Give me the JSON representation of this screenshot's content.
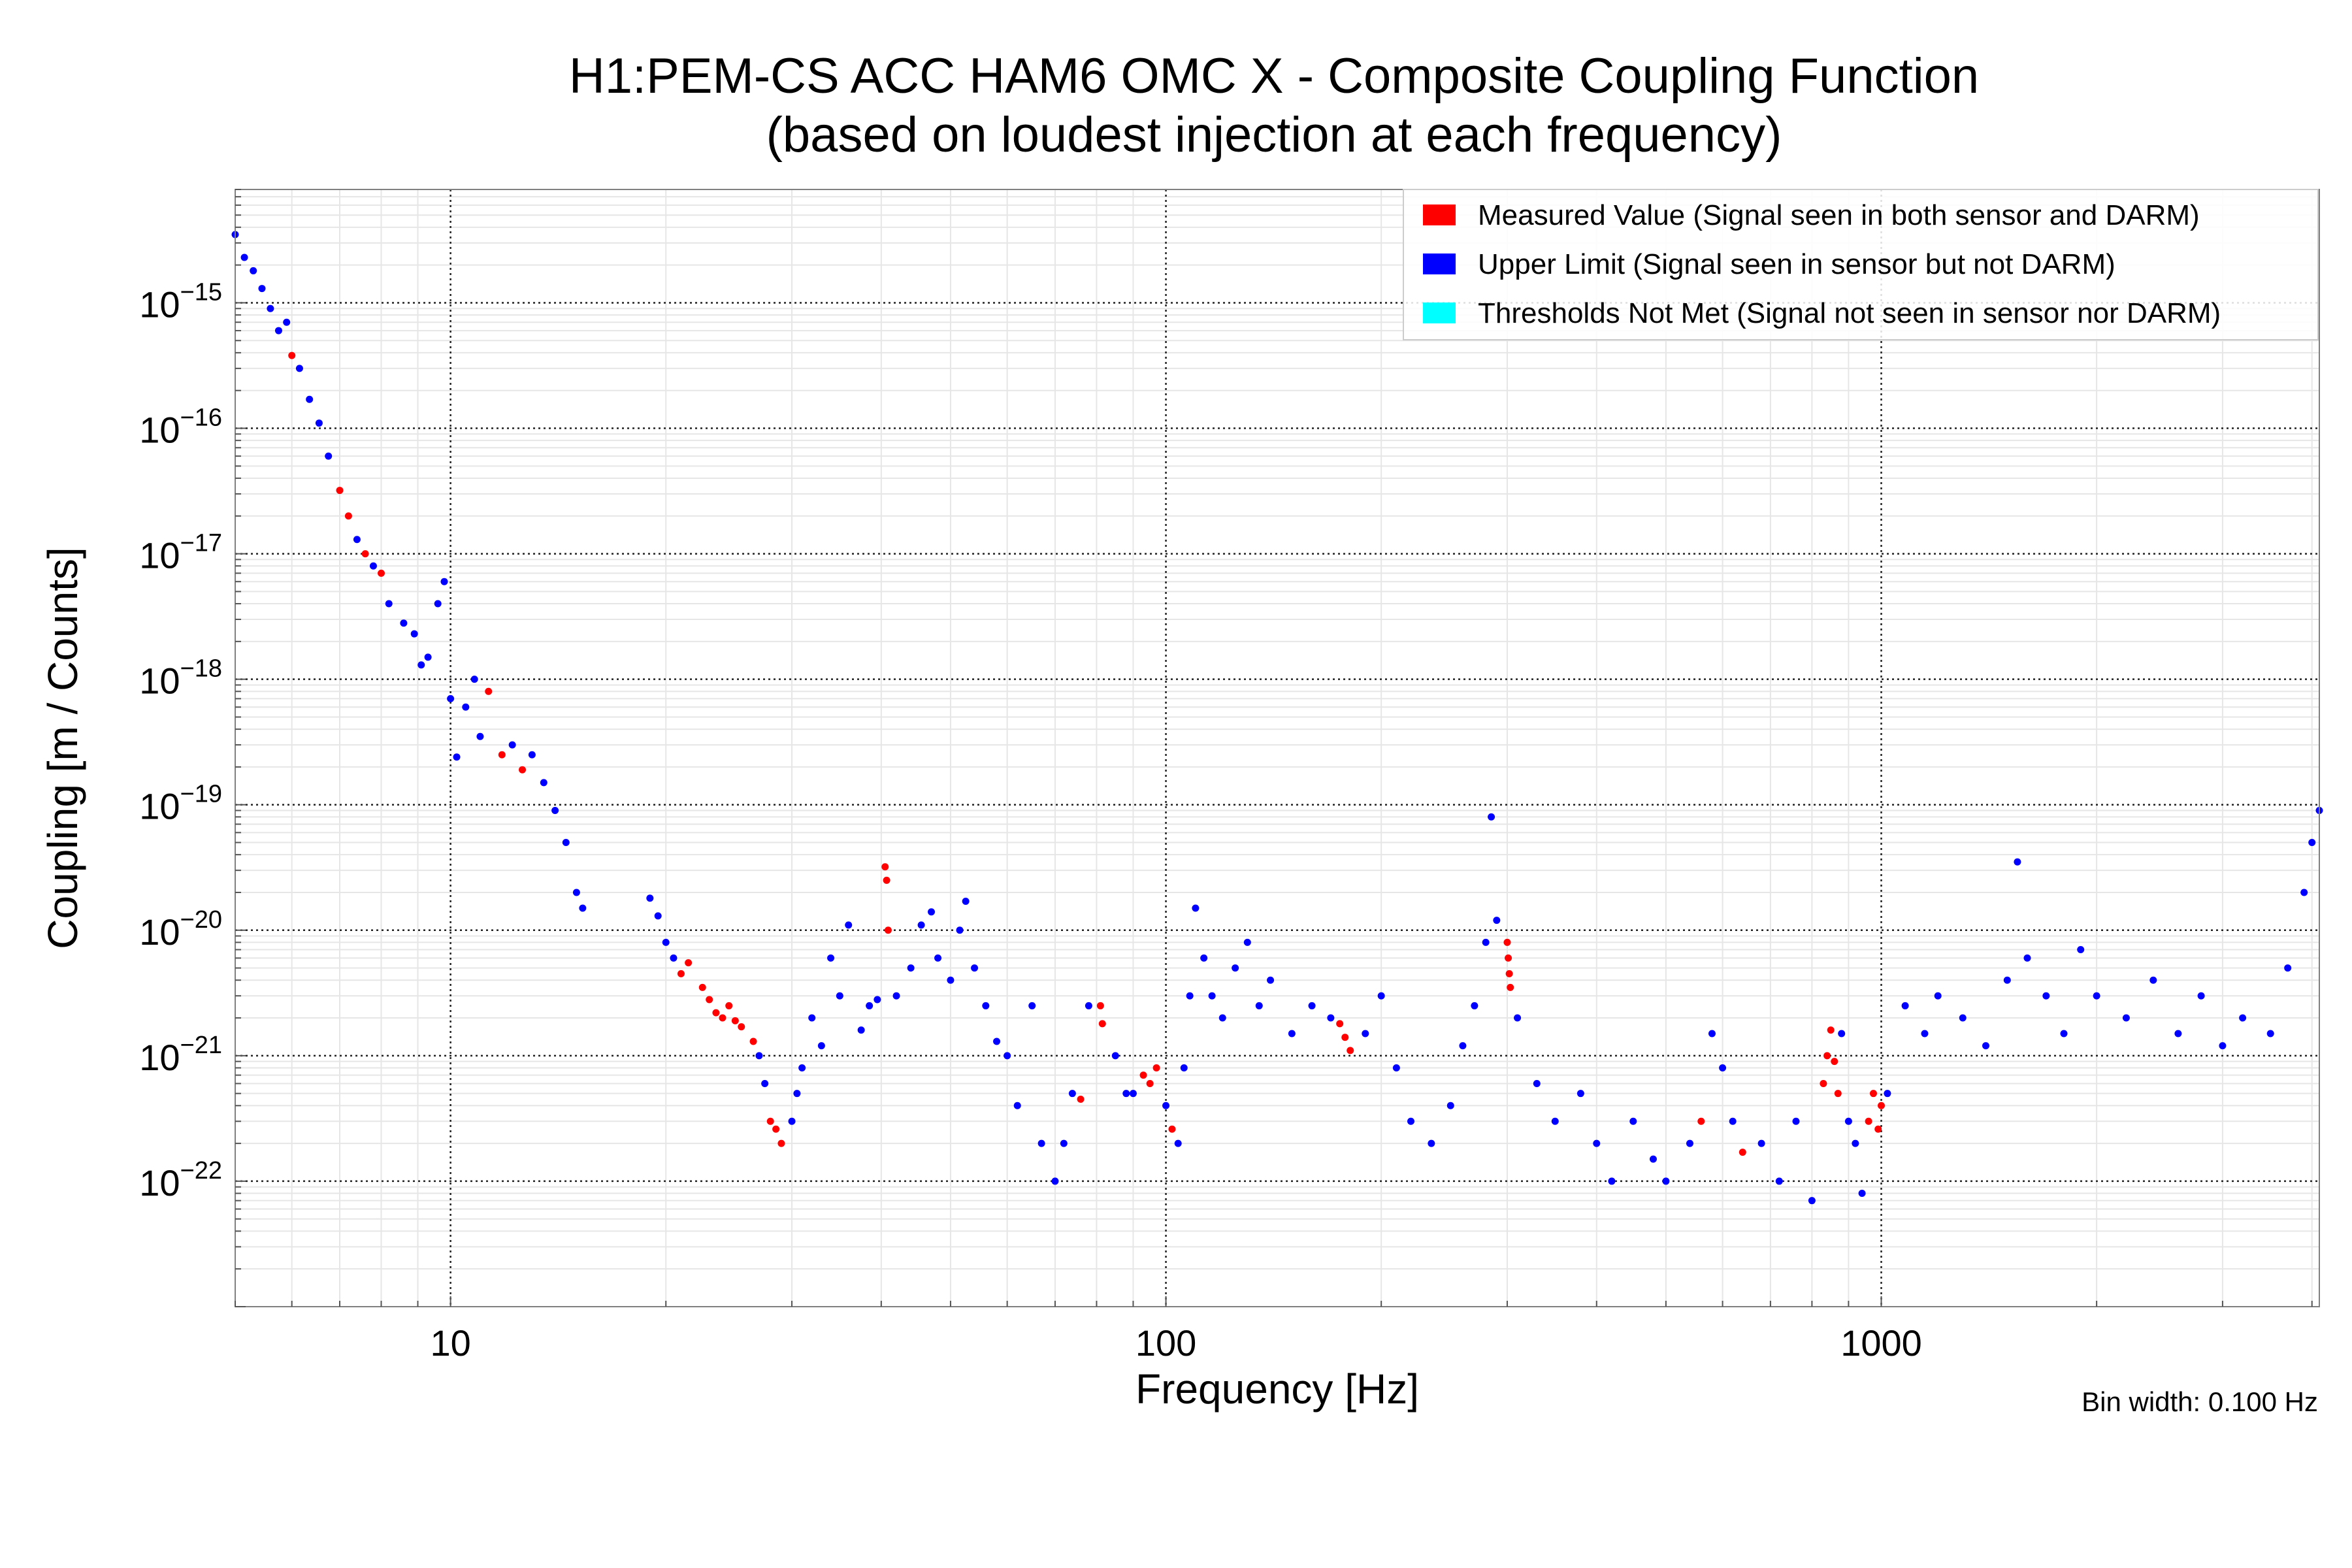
{
  "chart_data": {
    "type": "scatter",
    "title": "H1:PEM-CS ACC HAM6 OMC X - Composite Coupling Function",
    "subtitle": "(based on loudest injection at each frequency)",
    "xlabel": "Frequency [Hz]",
    "ylabel": "Coupling [m / Counts]",
    "xscale": "log",
    "yscale": "log",
    "xlim": [
      5,
      4096
    ],
    "ylim": [
      1e-23,
      8e-15
    ],
    "grid": true,
    "legend_position": "top-right",
    "x_ticks": [
      {
        "value": 10,
        "label": "10"
      },
      {
        "value": 100,
        "label": "100"
      },
      {
        "value": 1000,
        "label": "1000"
      }
    ],
    "y_ticks": [
      {
        "value": 1e-15,
        "base": "10",
        "exp": "−15"
      },
      {
        "value": 1e-16,
        "base": "10",
        "exp": "−16"
      },
      {
        "value": 1e-17,
        "base": "10",
        "exp": "−17"
      },
      {
        "value": 1e-18,
        "base": "10",
        "exp": "−18"
      },
      {
        "value": 1e-19,
        "base": "10",
        "exp": "−19"
      },
      {
        "value": 1e-20,
        "base": "10",
        "exp": "−20"
      },
      {
        "value": 1e-21,
        "base": "10",
        "exp": "−21"
      },
      {
        "value": 1e-22,
        "base": "10",
        "exp": "−22"
      }
    ],
    "annotation": "Bin width: 0.100 Hz",
    "series": [
      {
        "name": "Measured Value (Signal seen in both sensor and DARM)",
        "color": "#ff0000",
        "points": [
          [
            6.0,
            3.8e-16
          ],
          [
            7.0,
            3.2e-17
          ],
          [
            7.2,
            2e-17
          ],
          [
            7.6,
            1e-17
          ],
          [
            8.0,
            7e-18
          ],
          [
            11.3,
            8e-19
          ],
          [
            11.8,
            2.5e-19
          ],
          [
            12.6,
            1.9e-19
          ],
          [
            21.0,
            4.5e-21
          ],
          [
            21.5,
            5.5e-21
          ],
          [
            22.5,
            3.5e-21
          ],
          [
            23.0,
            2.8e-21
          ],
          [
            23.5,
            2.2e-21
          ],
          [
            24.0,
            2e-21
          ],
          [
            24.5,
            2.5e-21
          ],
          [
            25.0,
            1.9e-21
          ],
          [
            25.5,
            1.7e-21
          ],
          [
            26.5,
            1.3e-21
          ],
          [
            28.0,
            3e-22
          ],
          [
            28.5,
            2.6e-22
          ],
          [
            29.0,
            2e-22
          ],
          [
            40.5,
            3.2e-20
          ],
          [
            40.7,
            2.5e-20
          ],
          [
            40.9,
            1e-20
          ],
          [
            76.0,
            4.5e-22
          ],
          [
            81.0,
            2.5e-21
          ],
          [
            81.5,
            1.8e-21
          ],
          [
            93.0,
            7e-22
          ],
          [
            95.0,
            6e-22
          ],
          [
            97.0,
            8e-22
          ],
          [
            102.0,
            2.6e-22
          ],
          [
            175.0,
            1.8e-21
          ],
          [
            178.0,
            1.4e-21
          ],
          [
            181.0,
            1.1e-21
          ],
          [
            300.0,
            8e-21
          ],
          [
            301.0,
            6e-21
          ],
          [
            302.0,
            4.5e-21
          ],
          [
            303.0,
            3.5e-21
          ],
          [
            560.0,
            3e-22
          ],
          [
            640.0,
            1.7e-22
          ],
          [
            830.0,
            6e-22
          ],
          [
            840.0,
            1e-21
          ],
          [
            850.0,
            1.6e-21
          ],
          [
            860.0,
            9e-22
          ],
          [
            870.0,
            5e-22
          ],
          [
            960.0,
            3e-22
          ],
          [
            975.0,
            5e-22
          ],
          [
            990.0,
            2.6e-22
          ],
          [
            1000.0,
            4e-22
          ]
        ]
      },
      {
        "name": "Upper Limit (Signal seen in sensor but not DARM)",
        "color": "#0000ff",
        "points": [
          [
            5.0,
            3.5e-15
          ],
          [
            5.15,
            2.3e-15
          ],
          [
            5.3,
            1.8e-15
          ],
          [
            5.45,
            1.3e-15
          ],
          [
            5.6,
            9e-16
          ],
          [
            5.75,
            6e-16
          ],
          [
            5.9,
            7e-16
          ],
          [
            6.15,
            3e-16
          ],
          [
            6.35,
            1.7e-16
          ],
          [
            6.55,
            1.1e-16
          ],
          [
            6.75,
            6e-17
          ],
          [
            7.4,
            1.3e-17
          ],
          [
            7.8,
            8e-18
          ],
          [
            8.2,
            4e-18
          ],
          [
            8.6,
            2.8e-18
          ],
          [
            8.9,
            2.3e-18
          ],
          [
            9.1,
            1.3e-18
          ],
          [
            9.3,
            1.5e-18
          ],
          [
            9.6,
            4e-18
          ],
          [
            9.8,
            6e-18
          ],
          [
            10.0,
            7e-19
          ],
          [
            10.2,
            2.4e-19
          ],
          [
            10.5,
            6e-19
          ],
          [
            10.8,
            1e-18
          ],
          [
            11.0,
            3.5e-19
          ],
          [
            12.2,
            3e-19
          ],
          [
            13.0,
            2.5e-19
          ],
          [
            13.5,
            1.5e-19
          ],
          [
            14.0,
            9e-20
          ],
          [
            14.5,
            5e-20
          ],
          [
            15.0,
            2e-20
          ],
          [
            15.3,
            1.5e-20
          ],
          [
            19.0,
            1.8e-20
          ],
          [
            19.5,
            1.3e-20
          ],
          [
            20.0,
            8e-21
          ],
          [
            20.5,
            6e-21
          ],
          [
            27.0,
            1e-21
          ],
          [
            27.5,
            6e-22
          ],
          [
            30.0,
            3e-22
          ],
          [
            30.5,
            5e-22
          ],
          [
            31.0,
            8e-22
          ],
          [
            32.0,
            2e-21
          ],
          [
            33.0,
            1.2e-21
          ],
          [
            34.0,
            6e-21
          ],
          [
            35.0,
            3e-21
          ],
          [
            36.0,
            1.1e-20
          ],
          [
            37.5,
            1.6e-21
          ],
          [
            38.5,
            2.5e-21
          ],
          [
            39.5,
            2.8e-21
          ],
          [
            42.0,
            3e-21
          ],
          [
            44.0,
            5e-21
          ],
          [
            45.5,
            1.1e-20
          ],
          [
            47.0,
            1.4e-20
          ],
          [
            48.0,
            6e-21
          ],
          [
            50.0,
            4e-21
          ],
          [
            51.5,
            1e-20
          ],
          [
            52.5,
            1.7e-20
          ],
          [
            54.0,
            5e-21
          ],
          [
            56.0,
            2.5e-21
          ],
          [
            58.0,
            1.3e-21
          ],
          [
            60.0,
            1e-21
          ],
          [
            62.0,
            4e-22
          ],
          [
            65.0,
            2.5e-21
          ],
          [
            67.0,
            2e-22
          ],
          [
            70.0,
            1e-22
          ],
          [
            72.0,
            2e-22
          ],
          [
            74.0,
            5e-22
          ],
          [
            78.0,
            2.5e-21
          ],
          [
            85.0,
            1e-21
          ],
          [
            88.0,
            5e-22
          ],
          [
            90.0,
            5e-22
          ],
          [
            100.0,
            4e-22
          ],
          [
            104.0,
            2e-22
          ],
          [
            106.0,
            8e-22
          ],
          [
            108.0,
            3e-21
          ],
          [
            110.0,
            1.5e-20
          ],
          [
            113.0,
            6e-21
          ],
          [
            116.0,
            3e-21
          ],
          [
            120.0,
            2e-21
          ],
          [
            125.0,
            5e-21
          ],
          [
            130.0,
            8e-21
          ],
          [
            135.0,
            2.5e-21
          ],
          [
            140.0,
            4e-21
          ],
          [
            150.0,
            1.5e-21
          ],
          [
            160.0,
            2.5e-21
          ],
          [
            170.0,
            2e-21
          ],
          [
            190.0,
            1.5e-21
          ],
          [
            200.0,
            3e-21
          ],
          [
            210.0,
            8e-22
          ],
          [
            220.0,
            3e-22
          ],
          [
            235.0,
            2e-22
          ],
          [
            250.0,
            4e-22
          ],
          [
            260.0,
            1.2e-21
          ],
          [
            270.0,
            2.5e-21
          ],
          [
            280.0,
            8e-21
          ],
          [
            285.0,
            8e-20
          ],
          [
            290.0,
            1.2e-20
          ],
          [
            310.0,
            2e-21
          ],
          [
            330.0,
            6e-22
          ],
          [
            350.0,
            3e-22
          ],
          [
            380.0,
            5e-22
          ],
          [
            400.0,
            2e-22
          ],
          [
            420.0,
            1e-22
          ],
          [
            450.0,
            3e-22
          ],
          [
            480.0,
            1.5e-22
          ],
          [
            500.0,
            1e-22
          ],
          [
            540.0,
            2e-22
          ],
          [
            580.0,
            1.5e-21
          ],
          [
            600.0,
            8e-22
          ],
          [
            620.0,
            3e-22
          ],
          [
            680.0,
            2e-22
          ],
          [
            720.0,
            1e-22
          ],
          [
            760.0,
            3e-22
          ],
          [
            800.0,
            7e-23
          ],
          [
            880.0,
            1.5e-21
          ],
          [
            900.0,
            3e-22
          ],
          [
            920.0,
            2e-22
          ],
          [
            940.0,
            8e-23
          ],
          [
            1020.0,
            5e-22
          ],
          [
            1080.0,
            2.5e-21
          ],
          [
            1150.0,
            1.5e-21
          ],
          [
            1200.0,
            3e-21
          ],
          [
            1300.0,
            2e-21
          ],
          [
            1400.0,
            1.2e-21
          ],
          [
            1500.0,
            4e-21
          ],
          [
            1550.0,
            3.5e-20
          ],
          [
            1600.0,
            6e-21
          ],
          [
            1700.0,
            3e-21
          ],
          [
            1800.0,
            1.5e-21
          ],
          [
            1900.0,
            7e-21
          ],
          [
            2000.0,
            3e-21
          ],
          [
            2200.0,
            2e-21
          ],
          [
            2400.0,
            4e-21
          ],
          [
            2600.0,
            1.5e-21
          ],
          [
            2800.0,
            3e-21
          ],
          [
            3000.0,
            1.2e-21
          ],
          [
            3200.0,
            2e-21
          ],
          [
            3500.0,
            1.5e-21
          ],
          [
            3700.0,
            5e-21
          ],
          [
            3900.0,
            2e-20
          ],
          [
            4000.0,
            5e-20
          ],
          [
            4096.0,
            9e-20
          ]
        ]
      },
      {
        "name": "Thresholds Not Met (Signal not seen in sensor nor DARM)",
        "color": "#00ffff",
        "points": []
      }
    ]
  }
}
